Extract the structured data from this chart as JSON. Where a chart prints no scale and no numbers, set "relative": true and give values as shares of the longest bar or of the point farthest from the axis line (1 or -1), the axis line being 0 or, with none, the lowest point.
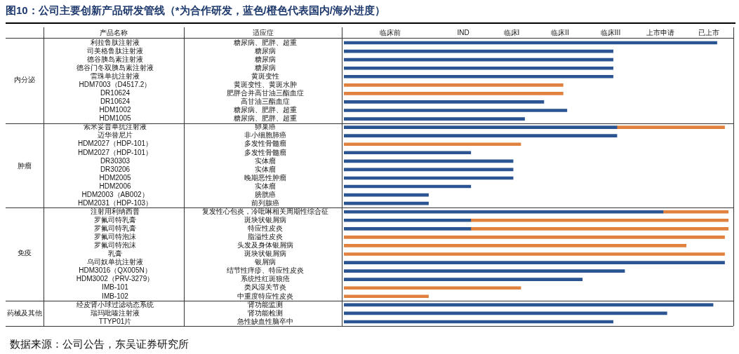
{
  "chart_data": {
    "type": "bar",
    "orientation": "horizontal",
    "stacked": true,
    "title": "图10：公司主要创新产品研发管线（*为合作研发，蓝色/橙色代表国内/海外进度）",
    "ylabel": "产品名称",
    "y2label": "适应症",
    "categories": [
      "利拉鲁肽注射液",
      "司美格鲁肽注射液",
      "德谷胰岛素注射液",
      "德谷门冬双胰岛素注射液",
      "雷珠单抗注射液",
      "HDM7003（D4517.2）",
      "DR10624",
      "DR10624",
      "HDM1002",
      "HDM1005",
      "索米妥昔单抗注射液",
      "迈华替尼片",
      "HDM2027（HDP-101）",
      "HDM2027（HDP-101）",
      "DR30303",
      "DR30206",
      "HDM2005",
      "HDM2006",
      "HDM2003（AB002）",
      "HDM2031（HDP-103）",
      "注射用利纳西普",
      "罗氟司特乳膏",
      "罗氟司特乳膏",
      "罗氟司特泡沫",
      "罗氟司特泡沫",
      "乳膏",
      "乌司奴单抗注射液",
      "HDM3016（QX005N）",
      "HDM3002（PRV-3279）",
      "IMB-101",
      "IMB-102",
      "经皮肾小球过滤动态系统",
      "瑞玛吡嗪注射液",
      "TTYP01片"
    ],
    "y2_categories": [
      "糖尿病、肥胖、超重",
      "糖尿病",
      "糖尿病",
      "糖尿病",
      "黄斑变性",
      "黄斑变性、黄斑水肿",
      "肥胖合并高甘油三酯血症",
      "高甘油三酯血症",
      "糖尿病、肥胖、超重",
      "糖尿病、肥胖、超重",
      "卵巢癌",
      "非小细胞肺癌",
      "多发性骨髓瘤",
      "多发性骨髓瘤",
      "实体瘤",
      "实体瘤",
      "晚期恶性肿瘤",
      "实体瘤",
      "膀胱癌",
      "前列腺癌",
      "复发性心包炎，冷吡啉相关周期性综合征",
      "斑块状银屑病",
      "特应性皮炎",
      "脂溢性皮炎",
      "头发及身体银屑病",
      "斑块状银屑病",
      "银屑病",
      "结节性痒疹、特应性皮炎",
      "系统性红斑狼疮",
      "类风湿关节炎",
      "中重度特应性皮炎",
      "肾功能监测",
      "肾功能检测",
      "急性缺血性脑卒中"
    ],
    "series": [
      {
        "color": "#2b5592",
        "values": [
          0.97,
          0.7,
          0.7,
          0.7,
          0.7,
          null,
          null,
          0.52,
          0.58,
          0.47,
          0.71,
          0.71,
          null,
          0.33,
          0.44,
          0.44,
          0.44,
          0.33,
          0.22,
          0.22,
          0.83,
          0.33,
          0.33,
          null,
          null,
          null,
          0.99,
          0.73,
          0.62,
          null,
          null,
          0.96,
          0.84,
          0.7
        ]
      },
      {
        "color": "#e0813f",
        "values": [
          null,
          null,
          null,
          null,
          null,
          0.57,
          0.57,
          null,
          null,
          null,
          0.28,
          null,
          0.46,
          null,
          null,
          null,
          null,
          null,
          null,
          null,
          0.17,
          0.67,
          0.67,
          0.99,
          0.89,
          0.99,
          null,
          null,
          null,
          0.46,
          0.22,
          null,
          null,
          null
        ]
      }
    ],
    "relative": true,
    "annotations": [
      "临床前",
      "IND",
      "临床I",
      "临床II",
      "临床III",
      "上市申请",
      "已上市",
      "内分泌",
      "肿瘤",
      "免疫",
      "药械及其他",
      "数据来源：公司公告，东吴证券研究所"
    ]
  }
}
